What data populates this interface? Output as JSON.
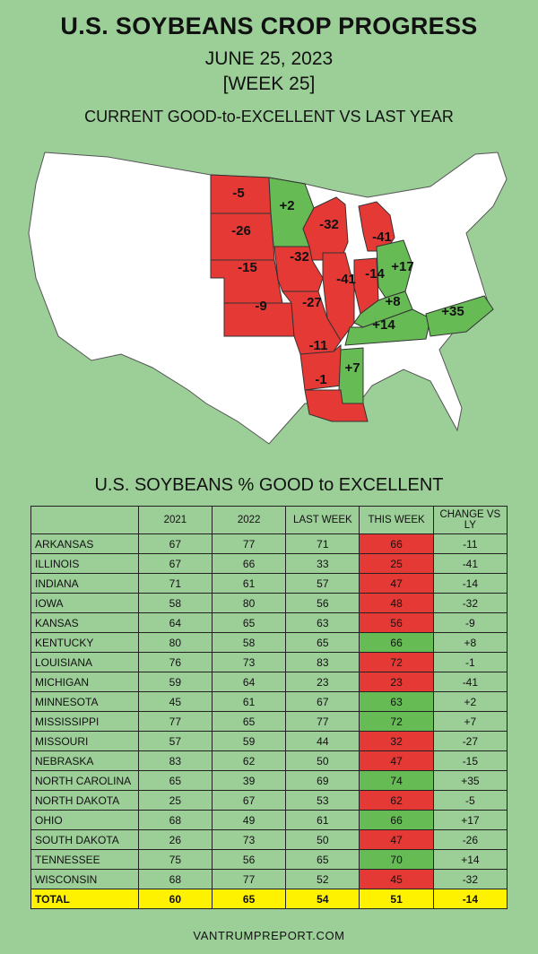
{
  "header": {
    "title": "U.S. SOYBEANS CROP PROGRESS",
    "date": "JUNE 25, 2023",
    "week": "[WEEK 25]",
    "subtitle": "CURRENT GOOD-to-EXCELLENT VS LAST YEAR"
  },
  "colors": {
    "background": "#9cce98",
    "worse": "#e53935",
    "better": "#66bb55",
    "total_row": "#fff200",
    "other_states": "#ffffff"
  },
  "map_labels": [
    {
      "state": "NORTH DAKOTA",
      "value": "-5",
      "status": "worse"
    },
    {
      "state": "MINNESOTA",
      "value": "+2",
      "status": "better"
    },
    {
      "state": "SOUTH DAKOTA",
      "value": "-26",
      "status": "worse"
    },
    {
      "state": "WISCONSIN",
      "value": "-32",
      "status": "worse"
    },
    {
      "state": "MICHIGAN",
      "value": "-41",
      "status": "worse"
    },
    {
      "state": "IOWA",
      "value": "-32",
      "status": "worse"
    },
    {
      "state": "NEBRASKA",
      "value": "-15",
      "status": "worse"
    },
    {
      "state": "OHIO",
      "value": "+17",
      "status": "better"
    },
    {
      "state": "INDIANA",
      "value": "-14",
      "status": "worse"
    },
    {
      "state": "ILLINOIS",
      "value": "-41",
      "status": "worse"
    },
    {
      "state": "MISSOURI",
      "value": "-27",
      "status": "worse"
    },
    {
      "state": "KANSAS",
      "value": "-9",
      "status": "worse"
    },
    {
      "state": "KENTUCKY",
      "value": "+8",
      "status": "better"
    },
    {
      "state": "NORTH CAROLINA",
      "value": "+35",
      "status": "better"
    },
    {
      "state": "TENNESSEE",
      "value": "+14",
      "status": "better"
    },
    {
      "state": "ARKANSAS",
      "value": "-11",
      "status": "worse"
    },
    {
      "state": "MISSISSIPPI",
      "value": "+7",
      "status": "better"
    },
    {
      "state": "LOUISIANA",
      "value": "-1",
      "status": "worse"
    }
  ],
  "table": {
    "title": "U.S. SOYBEANS % GOOD to EXCELLENT",
    "headers": [
      "",
      "2021",
      "2022",
      "LAST WEEK",
      "THIS WEEK",
      "CHANGE VS LY"
    ],
    "rows": [
      {
        "state": "ARKANSAS",
        "y2021": "67",
        "y2022": "77",
        "last": "71",
        "this": "66",
        "change": "-11",
        "status": "worse"
      },
      {
        "state": "ILLINOIS",
        "y2021": "67",
        "y2022": "66",
        "last": "33",
        "this": "25",
        "change": "-41",
        "status": "worse"
      },
      {
        "state": "INDIANA",
        "y2021": "71",
        "y2022": "61",
        "last": "57",
        "this": "47",
        "change": "-14",
        "status": "worse"
      },
      {
        "state": "IOWA",
        "y2021": "58",
        "y2022": "80",
        "last": "56",
        "this": "48",
        "change": "-32",
        "status": "worse"
      },
      {
        "state": "KANSAS",
        "y2021": "64",
        "y2022": "65",
        "last": "63",
        "this": "56",
        "change": "-9",
        "status": "worse"
      },
      {
        "state": "KENTUCKY",
        "y2021": "80",
        "y2022": "58",
        "last": "65",
        "this": "66",
        "change": "+8",
        "status": "better"
      },
      {
        "state": "LOUISIANA",
        "y2021": "76",
        "y2022": "73",
        "last": "83",
        "this": "72",
        "change": "-1",
        "status": "worse"
      },
      {
        "state": "MICHIGAN",
        "y2021": "59",
        "y2022": "64",
        "last": "23",
        "this": "23",
        "change": "-41",
        "status": "worse"
      },
      {
        "state": "MINNESOTA",
        "y2021": "45",
        "y2022": "61",
        "last": "67",
        "this": "63",
        "change": "+2",
        "status": "better"
      },
      {
        "state": "MISSISSIPPI",
        "y2021": "77",
        "y2022": "65",
        "last": "77",
        "this": "72",
        "change": "+7",
        "status": "better"
      },
      {
        "state": "MISSOURI",
        "y2021": "57",
        "y2022": "59",
        "last": "44",
        "this": "32",
        "change": "-27",
        "status": "worse"
      },
      {
        "state": "NEBRASKA",
        "y2021": "83",
        "y2022": "62",
        "last": "50",
        "this": "47",
        "change": "-15",
        "status": "worse"
      },
      {
        "state": "NORTH CAROLINA",
        "y2021": "65",
        "y2022": "39",
        "last": "69",
        "this": "74",
        "change": "+35",
        "status": "better"
      },
      {
        "state": "NORTH DAKOTA",
        "y2021": "25",
        "y2022": "67",
        "last": "53",
        "this": "62",
        "change": "-5",
        "status": "worse"
      },
      {
        "state": "OHIO",
        "y2021": "68",
        "y2022": "49",
        "last": "61",
        "this": "66",
        "change": "+17",
        "status": "better"
      },
      {
        "state": "SOUTH DAKOTA",
        "y2021": "26",
        "y2022": "73",
        "last": "50",
        "this": "47",
        "change": "-26",
        "status": "worse"
      },
      {
        "state": "TENNESSEE",
        "y2021": "75",
        "y2022": "56",
        "last": "65",
        "this": "70",
        "change": "+14",
        "status": "better"
      },
      {
        "state": "WISCONSIN",
        "y2021": "68",
        "y2022": "77",
        "last": "52",
        "this": "45",
        "change": "-32",
        "status": "worse"
      }
    ],
    "total": {
      "state": "TOTAL",
      "y2021": "60",
      "y2022": "65",
      "last": "54",
      "this": "51",
      "change": "-14"
    }
  },
  "footer": "VANTRUMPREPORT.COM"
}
